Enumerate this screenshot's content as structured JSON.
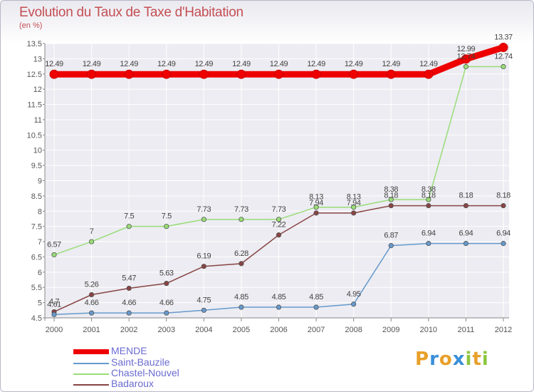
{
  "title": "Evolution du Taux de Taxe d'Habitation",
  "unit": "(en %)",
  "logo": {
    "letters": [
      "P",
      "r",
      "o",
      "x",
      "i",
      "t",
      "i"
    ],
    "colors": [
      "#e8a02a",
      "#3a8fd8",
      "#e8a02a",
      "#3a8fd8",
      "#8cc63e",
      "#e8a02a",
      "#8cc63e"
    ]
  },
  "chart_data": {
    "type": "line",
    "x": [
      "2000",
      "2001",
      "2002",
      "2003",
      "2004",
      "2005",
      "2006",
      "2007",
      "2008",
      "2009",
      "2010",
      "2011",
      "2012"
    ],
    "ylim": [
      4.5,
      13.5
    ],
    "yticks": [
      "4.5",
      "5",
      "5.5",
      "6",
      "6.5",
      "7",
      "7.5",
      "8",
      "8.5",
      "9",
      "9.5",
      "10",
      "10.5",
      "11",
      "11.5",
      "12",
      "12.5",
      "13",
      "13.5"
    ],
    "grid": true,
    "legend_placement": "bottom-left",
    "series": [
      {
        "name": "MENDE",
        "color": "#ee0000",
        "values": [
          12.49,
          12.49,
          12.49,
          12.49,
          12.49,
          12.49,
          12.49,
          12.49,
          12.49,
          12.49,
          12.49,
          12.99,
          13.37
        ],
        "labels": [
          "12.49",
          "12.49",
          "12.49",
          "12.49",
          "12.49",
          "12.49",
          "12.49",
          "12.49",
          "12.49",
          "12.49",
          "12.49",
          "12.99",
          "13.37"
        ]
      },
      {
        "name": "Saint-Bauzile",
        "color": "#6699cc",
        "values": [
          4.61,
          4.66,
          4.66,
          4.66,
          4.75,
          4.85,
          4.85,
          4.85,
          4.95,
          6.87,
          6.94,
          6.94,
          6.94
        ],
        "labels": [
          "4.61",
          "4.66",
          "4.66",
          "4.66",
          "4.75",
          "4.85",
          "4.85",
          "4.85",
          "4.95",
          "6.87",
          "6.94",
          "6.94",
          "6.94"
        ]
      },
      {
        "name": "Chastel-Nouvel",
        "color": "#99dd77",
        "values": [
          6.57,
          7,
          7.5,
          7.5,
          7.73,
          7.73,
          7.73,
          8.13,
          8.13,
          8.38,
          8.38,
          12.74,
          12.74
        ],
        "labels": [
          "6.57",
          "7",
          "7.5",
          "7.5",
          "7.73",
          "7.73",
          "7.73",
          "8.13",
          "8.13",
          "8.38",
          "8.38",
          "12.74",
          "12.74"
        ]
      },
      {
        "name": "Badaroux",
        "color": "#884444",
        "values": [
          4.7,
          5.26,
          5.47,
          5.63,
          6.19,
          6.28,
          7.22,
          7.94,
          7.94,
          8.18,
          8.18,
          8.18,
          8.18
        ],
        "labels": [
          "4.7",
          "5.26",
          "5.47",
          "5.63",
          "6.19",
          "6.28",
          "7.22",
          "7.94",
          "7.94",
          "8.18",
          "8.18",
          "8.18",
          "8.18"
        ]
      }
    ]
  }
}
